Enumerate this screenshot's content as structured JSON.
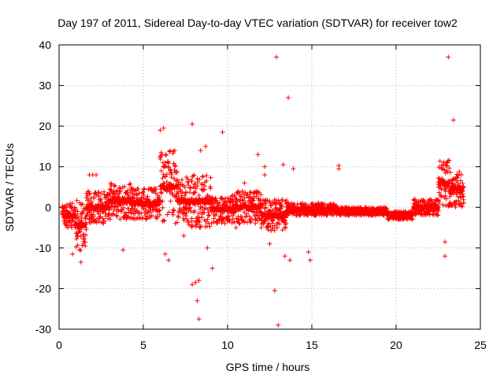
{
  "chart_data": {
    "type": "scatter",
    "title": "Day 197 of 2011, Sidereal Day-to-day VTEC variation (SDTVAR) for receiver tow2",
    "xlabel": "GPS time / hours",
    "ylabel": "SDTVAR / TECUs",
    "xlim": [
      0,
      25
    ],
    "ylim": [
      -30,
      40
    ],
    "x_ticks": [
      0,
      5,
      10,
      15,
      20,
      25
    ],
    "y_ticks": [
      -30,
      -20,
      -10,
      0,
      10,
      20,
      30,
      40
    ],
    "grid": true,
    "marker": "+",
    "series": [
      {
        "name": "SDTVAR",
        "color": "#ff0000",
        "baseline_bands": [
          {
            "x": [
              0.2,
              1.0
            ],
            "y_low": -5,
            "y_high": 1
          },
          {
            "x": [
              1.0,
              1.6
            ],
            "y_low": -11,
            "y_high": 2
          },
          {
            "x": [
              1.6,
              3.0
            ],
            "y_low": -4,
            "y_high": 4
          },
          {
            "x": [
              3.0,
              4.3
            ],
            "y_low": -3,
            "y_high": 6
          },
          {
            "x": [
              4.3,
              6.0
            ],
            "y_low": -3,
            "y_high": 5
          },
          {
            "x": [
              6.0,
              7.0
            ],
            "y_low": -4,
            "y_high": 14
          },
          {
            "x": [
              7.0,
              9.0
            ],
            "y_low": -5,
            "y_high": 8
          },
          {
            "x": [
              9.0,
              10.5
            ],
            "y_low": -4,
            "y_high": 3
          },
          {
            "x": [
              10.5,
              12.0
            ],
            "y_low": -4,
            "y_high": 4
          },
          {
            "x": [
              12.0,
              13.5
            ],
            "y_low": -6,
            "y_high": 2
          },
          {
            "x": [
              13.5,
              16.5
            ],
            "y_low": -2,
            "y_high": 1
          },
          {
            "x": [
              16.5,
              19.5
            ],
            "y_low": -2,
            "y_high": 0
          },
          {
            "x": [
              19.5,
              21.0
            ],
            "y_low": -3,
            "y_high": -1
          },
          {
            "x": [
              21.0,
              22.5
            ],
            "y_low": -2,
            "y_high": 2
          },
          {
            "x": [
              22.5,
              23.2
            ],
            "y_low": 0,
            "y_high": 12
          },
          {
            "x": [
              23.2,
              24.0
            ],
            "y_low": 0,
            "y_high": 9
          }
        ],
        "points": [
          [
            12.9,
            37
          ],
          [
            23.1,
            37
          ],
          [
            13.6,
            27
          ],
          [
            23.4,
            21.5
          ],
          [
            7.9,
            20.5
          ],
          [
            9.7,
            18.5
          ],
          [
            6.0,
            19
          ],
          [
            6.2,
            19.5
          ],
          [
            11.8,
            13
          ],
          [
            13.3,
            10.5
          ],
          [
            12.2,
            10
          ],
          [
            13.9,
            9.5
          ],
          [
            16.6,
            10.3
          ],
          [
            16.6,
            9.5
          ],
          [
            8.7,
            15
          ],
          [
            8.4,
            14
          ],
          [
            1.8,
            8
          ],
          [
            2.0,
            8
          ],
          [
            2.2,
            8
          ],
          [
            0.8,
            -11.5
          ],
          [
            1.3,
            -13.5
          ],
          [
            3.8,
            -10.5
          ],
          [
            6.3,
            -11.5
          ],
          [
            6.5,
            -13
          ],
          [
            7.9,
            -19
          ],
          [
            8.1,
            -18.5
          ],
          [
            8.3,
            -18
          ],
          [
            8.2,
            -23
          ],
          [
            8.3,
            -27.5
          ],
          [
            9.1,
            -15
          ],
          [
            8.8,
            -10
          ],
          [
            12.8,
            -20.5
          ],
          [
            13.0,
            -29
          ],
          [
            13.4,
            -12
          ],
          [
            13.7,
            -13
          ],
          [
            14.8,
            -11
          ],
          [
            14.9,
            -13
          ],
          [
            22.9,
            -8.5
          ],
          [
            22.9,
            -12
          ],
          [
            12.5,
            -9
          ],
          [
            12.2,
            8
          ],
          [
            11.0,
            6
          ],
          [
            7.4,
            -7
          ],
          [
            10.5,
            -5
          ]
        ]
      }
    ]
  }
}
